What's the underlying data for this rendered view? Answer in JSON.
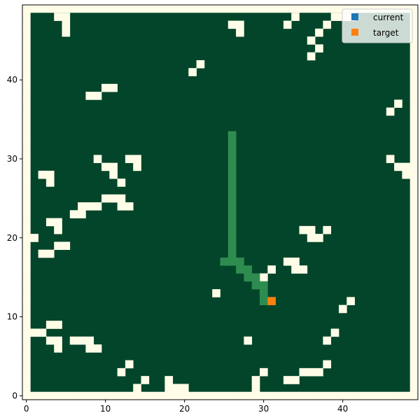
{
  "colors": {
    "background": "#fffde7",
    "obstacle": "#fffde7",
    "free": "#03452a",
    "path": "#2e8d4e",
    "current": "#1f77b4",
    "target": "#ff7f0e",
    "legend_bg": "#ffffff"
  },
  "chart_data": {
    "type": "heatmap",
    "grid_size": [
      49,
      49
    ],
    "xlim": [
      -0.5,
      49.5
    ],
    "ylim": [
      -0.5,
      49.5
    ],
    "xticks": [
      "0",
      "10",
      "20",
      "30",
      "40"
    ],
    "yticks": [
      "0",
      "10",
      "20",
      "30",
      "40"
    ],
    "legend": {
      "placement": "top-right",
      "entries": [
        {
          "label": "current",
          "color_key": "current"
        },
        {
          "label": "target",
          "color_key": "target"
        }
      ]
    },
    "current": [
      31,
      12
    ],
    "target": [
      31,
      12
    ],
    "path": [
      [
        26,
        33
      ],
      [
        26,
        32
      ],
      [
        26,
        31
      ],
      [
        26,
        30
      ],
      [
        26,
        29
      ],
      [
        26,
        28
      ],
      [
        26,
        27
      ],
      [
        26,
        26
      ],
      [
        26,
        25
      ],
      [
        26,
        24
      ],
      [
        26,
        23
      ],
      [
        26,
        22
      ],
      [
        26,
        21
      ],
      [
        26,
        20
      ],
      [
        26,
        19
      ],
      [
        26,
        18
      ],
      [
        25,
        17
      ],
      [
        26,
        17
      ],
      [
        27,
        17
      ],
      [
        27,
        16
      ],
      [
        28,
        16
      ],
      [
        28,
        15
      ],
      [
        29,
        15
      ],
      [
        29,
        14
      ],
      [
        30,
        14
      ],
      [
        30,
        13
      ],
      [
        30,
        12
      ]
    ],
    "obstacles": [
      [
        0,
        49
      ],
      [
        0,
        48
      ],
      [
        0,
        47
      ],
      [
        0,
        46
      ],
      [
        0,
        45
      ],
      [
        0,
        44
      ],
      [
        0,
        43
      ],
      [
        0,
        42
      ],
      [
        0,
        41
      ],
      [
        0,
        40
      ],
      [
        0,
        39
      ],
      [
        0,
        38
      ],
      [
        0,
        37
      ],
      [
        0,
        36
      ],
      [
        0,
        35
      ],
      [
        0,
        34
      ],
      [
        0,
        33
      ],
      [
        0,
        32
      ],
      [
        0,
        31
      ],
      [
        0,
        30
      ],
      [
        0,
        29
      ],
      [
        0,
        28
      ],
      [
        0,
        27
      ],
      [
        0,
        26
      ],
      [
        0,
        25
      ],
      [
        0,
        24
      ],
      [
        0,
        23
      ],
      [
        0,
        22
      ],
      [
        0,
        21
      ],
      [
        0,
        20
      ],
      [
        0,
        19
      ],
      [
        0,
        18
      ],
      [
        0,
        17
      ],
      [
        0,
        16
      ],
      [
        0,
        15
      ],
      [
        0,
        14
      ],
      [
        0,
        13
      ],
      [
        0,
        12
      ],
      [
        0,
        11
      ],
      [
        0,
        10
      ],
      [
        0,
        9
      ],
      [
        0,
        8
      ],
      [
        0,
        7
      ],
      [
        0,
        6
      ],
      [
        0,
        5
      ],
      [
        0,
        4
      ],
      [
        0,
        3
      ],
      [
        0,
        2
      ],
      [
        0,
        1
      ],
      [
        0,
        0
      ],
      [
        1,
        0
      ],
      [
        2,
        0
      ],
      [
        3,
        0
      ],
      [
        4,
        0
      ],
      [
        5,
        0
      ],
      [
        6,
        0
      ],
      [
        7,
        0
      ],
      [
        8,
        0
      ],
      [
        9,
        0
      ],
      [
        10,
        0
      ],
      [
        11,
        0
      ],
      [
        12,
        0
      ],
      [
        13,
        0
      ],
      [
        14,
        0
      ],
      [
        15,
        0
      ],
      [
        16,
        0
      ],
      [
        17,
        0
      ],
      [
        18,
        0
      ],
      [
        19,
        0
      ],
      [
        20,
        0
      ],
      [
        21,
        0
      ],
      [
        22,
        0
      ],
      [
        23,
        0
      ],
      [
        24,
        0
      ],
      [
        25,
        0
      ],
      [
        26,
        0
      ],
      [
        27,
        0
      ],
      [
        28,
        0
      ],
      [
        29,
        0
      ],
      [
        30,
        0
      ],
      [
        31,
        0
      ],
      [
        32,
        0
      ],
      [
        33,
        0
      ],
      [
        34,
        0
      ],
      [
        35,
        0
      ],
      [
        36,
        0
      ],
      [
        37,
        0
      ],
      [
        38,
        0
      ],
      [
        39,
        0
      ],
      [
        40,
        0
      ],
      [
        41,
        0
      ],
      [
        42,
        0
      ],
      [
        43,
        0
      ],
      [
        44,
        0
      ],
      [
        45,
        0
      ],
      [
        46,
        0
      ],
      [
        47,
        0
      ],
      [
        48,
        0
      ],
      [
        4,
        48
      ],
      [
        5,
        48
      ],
      [
        5,
        47
      ],
      [
        5,
        46
      ],
      [
        26,
        47
      ],
      [
        27,
        47
      ],
      [
        27,
        46
      ],
      [
        33,
        47
      ],
      [
        34,
        48
      ],
      [
        38,
        47
      ],
      [
        39,
        48
      ],
      [
        40,
        48
      ],
      [
        41,
        48
      ],
      [
        37,
        46
      ],
      [
        36,
        45
      ],
      [
        37,
        44
      ],
      [
        36,
        43
      ],
      [
        22,
        42
      ],
      [
        21,
        41
      ],
      [
        8,
        38
      ],
      [
        9,
        38
      ],
      [
        10,
        39
      ],
      [
        11,
        39
      ],
      [
        47,
        37
      ],
      [
        46,
        36
      ],
      [
        9,
        30
      ],
      [
        13,
        30
      ],
      [
        14,
        30
      ],
      [
        14,
        29
      ],
      [
        10,
        29
      ],
      [
        11,
        29
      ],
      [
        11,
        28
      ],
      [
        12,
        27
      ],
      [
        46,
        30
      ],
      [
        47,
        29
      ],
      [
        48,
        29
      ],
      [
        48,
        28
      ],
      [
        2,
        28
      ],
      [
        3,
        28
      ],
      [
        3,
        27
      ],
      [
        10,
        25
      ],
      [
        11,
        25
      ],
      [
        12,
        25
      ],
      [
        12,
        24
      ],
      [
        13,
        24
      ],
      [
        7,
        24
      ],
      [
        8,
        24
      ],
      [
        9,
        24
      ],
      [
        6,
        23
      ],
      [
        7,
        23
      ],
      [
        3,
        22
      ],
      [
        4,
        22
      ],
      [
        4,
        21
      ],
      [
        35,
        21
      ],
      [
        36,
        21
      ],
      [
        38,
        21
      ],
      [
        36,
        20
      ],
      [
        37,
        20
      ],
      [
        1,
        20
      ],
      [
        4,
        19
      ],
      [
        5,
        19
      ],
      [
        2,
        18
      ],
      [
        3,
        18
      ],
      [
        33,
        17
      ],
      [
        34,
        17
      ],
      [
        34,
        16
      ],
      [
        35,
        16
      ],
      [
        31,
        16
      ],
      [
        30,
        15
      ],
      [
        24,
        13
      ],
      [
        41,
        12
      ],
      [
        40,
        11
      ],
      [
        1,
        8
      ],
      [
        2,
        8
      ],
      [
        3,
        9
      ],
      [
        4,
        9
      ],
      [
        3,
        7
      ],
      [
        4,
        7
      ],
      [
        4,
        6
      ],
      [
        6,
        7
      ],
      [
        7,
        7
      ],
      [
        8,
        7
      ],
      [
        8,
        6
      ],
      [
        9,
        6
      ],
      [
        28,
        7
      ],
      [
        39,
        8
      ],
      [
        38,
        7
      ],
      [
        13,
        4
      ],
      [
        12,
        3
      ],
      [
        30,
        3
      ],
      [
        29,
        2
      ],
      [
        29,
        1
      ],
      [
        15,
        2
      ],
      [
        14,
        1
      ],
      [
        18,
        2
      ],
      [
        18,
        1
      ],
      [
        19,
        1
      ],
      [
        20,
        1
      ],
      [
        33,
        2
      ],
      [
        34,
        2
      ],
      [
        35,
        3
      ],
      [
        36,
        3
      ],
      [
        37,
        3
      ],
      [
        38,
        4
      ]
    ]
  }
}
